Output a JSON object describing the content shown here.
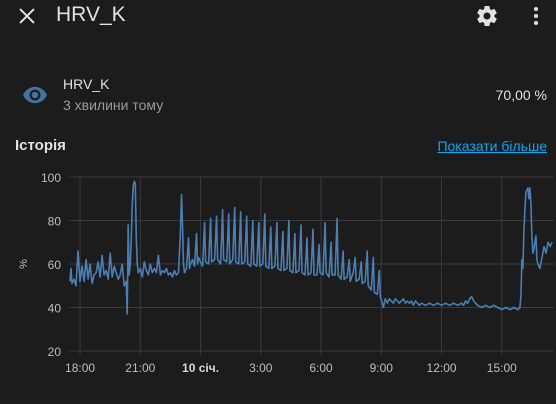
{
  "header": {
    "title": "HRV_K",
    "close_icon": "close-icon",
    "settings_icon": "gear-icon",
    "more_icon": "more-vertical-icon"
  },
  "entity": {
    "icon": "eye-icon",
    "name": "HRV_K",
    "last_changed": "3 хвилини тому",
    "state": "70,00 %"
  },
  "history": {
    "title": "Історія",
    "show_more": "Показати більше"
  },
  "colors": {
    "background": "#1c1c1c",
    "line": "#4a7fb5",
    "link": "#03a9f4",
    "icon": "#44739e"
  },
  "chart_data": {
    "type": "line",
    "ylabel": "%",
    "ylim": [
      20,
      100
    ],
    "yticks": [
      20,
      40,
      60,
      80,
      100
    ],
    "xticks": [
      {
        "label": "18:00",
        "hour": 0,
        "bold": false
      },
      {
        "label": "21:00",
        "hour": 3,
        "bold": false
      },
      {
        "label": "10 січ.",
        "hour": 6,
        "bold": true
      },
      {
        "label": "3:00",
        "hour": 9,
        "bold": false
      },
      {
        "label": "6:00",
        "hour": 12,
        "bold": false
      },
      {
        "label": "9:00",
        "hour": 15,
        "bold": false
      },
      {
        "label": "12:00",
        "hour": 18,
        "bold": false
      },
      {
        "label": "15:00",
        "hour": 21,
        "bold": false
      }
    ],
    "xlim_hours": [
      -0.55,
      23.55
    ],
    "grid": true,
    "series": [
      {
        "name": "",
        "points": [
          [
            -0.5,
            52
          ],
          [
            -0.45,
            58
          ],
          [
            -0.4,
            51
          ],
          [
            -0.3,
            53
          ],
          [
            -0.2,
            50
          ],
          [
            -0.1,
            66
          ],
          [
            0.0,
            52
          ],
          [
            0.1,
            59
          ],
          [
            0.2,
            52
          ],
          [
            0.3,
            62
          ],
          [
            0.4,
            53
          ],
          [
            0.5,
            60
          ],
          [
            0.6,
            51
          ],
          [
            0.7,
            55
          ],
          [
            0.8,
            56
          ],
          [
            0.9,
            61
          ],
          [
            1.0,
            54
          ],
          [
            1.1,
            64
          ],
          [
            1.2,
            55
          ],
          [
            1.3,
            57
          ],
          [
            1.4,
            53
          ],
          [
            1.5,
            65
          ],
          [
            1.6,
            54
          ],
          [
            1.7,
            59
          ],
          [
            1.8,
            56
          ],
          [
            1.9,
            53
          ],
          [
            2.0,
            55
          ],
          [
            2.1,
            60
          ],
          [
            2.2,
            50
          ],
          [
            2.3,
            52
          ],
          [
            2.35,
            37
          ],
          [
            2.4,
            78
          ],
          [
            2.45,
            55
          ],
          [
            2.5,
            60
          ],
          [
            2.55,
            72
          ],
          [
            2.6,
            88
          ],
          [
            2.65,
            96
          ],
          [
            2.7,
            98
          ],
          [
            2.75,
            97
          ],
          [
            2.8,
            72
          ],
          [
            2.85,
            60
          ],
          [
            2.9,
            56
          ],
          [
            3.0,
            58
          ],
          [
            3.1,
            54
          ],
          [
            3.2,
            61
          ],
          [
            3.3,
            57
          ],
          [
            3.4,
            55
          ],
          [
            3.5,
            60
          ],
          [
            3.6,
            56
          ],
          [
            3.7,
            58
          ],
          [
            3.8,
            56
          ],
          [
            3.9,
            64
          ],
          [
            4.0,
            55
          ],
          [
            4.1,
            57
          ],
          [
            4.2,
            56
          ],
          [
            4.3,
            58
          ],
          [
            4.4,
            55
          ],
          [
            4.5,
            56
          ],
          [
            4.6,
            54
          ],
          [
            4.7,
            57
          ],
          [
            4.8,
            55
          ],
          [
            4.9,
            56
          ],
          [
            5.0,
            75
          ],
          [
            5.05,
            92
          ],
          [
            5.1,
            78
          ],
          [
            5.15,
            60
          ],
          [
            5.2,
            56
          ],
          [
            5.3,
            58
          ],
          [
            5.4,
            72
          ],
          [
            5.45,
            58
          ],
          [
            5.5,
            60
          ],
          [
            5.6,
            62
          ],
          [
            5.7,
            59
          ],
          [
            5.8,
            74
          ],
          [
            5.85,
            60
          ],
          [
            5.9,
            63
          ],
          [
            6.0,
            61
          ],
          [
            6.1,
            59
          ],
          [
            6.2,
            79
          ],
          [
            6.25,
            61
          ],
          [
            6.4,
            60
          ],
          [
            6.5,
            81
          ],
          [
            6.55,
            61
          ],
          [
            6.7,
            62
          ],
          [
            6.8,
            82
          ],
          [
            6.85,
            62
          ],
          [
            7.0,
            60
          ],
          [
            7.1,
            85
          ],
          [
            7.15,
            62
          ],
          [
            7.3,
            61
          ],
          [
            7.4,
            83
          ],
          [
            7.45,
            60
          ],
          [
            7.6,
            62
          ],
          [
            7.7,
            86
          ],
          [
            7.75,
            61
          ],
          [
            7.9,
            60
          ],
          [
            8.0,
            84
          ],
          [
            8.05,
            60
          ],
          [
            8.2,
            61
          ],
          [
            8.3,
            82
          ],
          [
            8.35,
            60
          ],
          [
            8.5,
            59
          ],
          [
            8.6,
            80
          ],
          [
            8.65,
            60
          ],
          [
            8.8,
            59
          ],
          [
            8.9,
            79
          ],
          [
            8.95,
            59
          ],
          [
            9.1,
            60
          ],
          [
            9.2,
            83
          ],
          [
            9.25,
            59
          ],
          [
            9.4,
            58
          ],
          [
            9.5,
            77
          ],
          [
            9.55,
            58
          ],
          [
            9.7,
            59
          ],
          [
            9.8,
            79
          ],
          [
            9.85,
            58
          ],
          [
            10.0,
            57
          ],
          [
            10.1,
            75
          ],
          [
            10.15,
            57
          ],
          [
            10.3,
            58
          ],
          [
            10.4,
            80
          ],
          [
            10.45,
            57
          ],
          [
            10.6,
            56
          ],
          [
            10.7,
            74
          ],
          [
            10.75,
            56
          ],
          [
            10.9,
            57
          ],
          [
            11.0,
            78
          ],
          [
            11.05,
            56
          ],
          [
            11.2,
            55
          ],
          [
            11.3,
            72
          ],
          [
            11.35,
            55
          ],
          [
            11.5,
            56
          ],
          [
            11.6,
            76
          ],
          [
            11.65,
            55
          ],
          [
            11.8,
            55
          ],
          [
            11.9,
            69
          ],
          [
            11.95,
            56
          ],
          [
            12.1,
            55
          ],
          [
            12.2,
            79
          ],
          [
            12.25,
            56
          ],
          [
            12.4,
            54
          ],
          [
            12.5,
            70
          ],
          [
            12.55,
            55
          ],
          [
            12.7,
            55
          ],
          [
            12.8,
            81
          ],
          [
            12.85,
            55
          ],
          [
            13.0,
            53
          ],
          [
            13.1,
            66
          ],
          [
            13.15,
            53
          ],
          [
            13.3,
            54
          ],
          [
            13.4,
            62
          ],
          [
            13.45,
            52
          ],
          [
            13.6,
            56
          ],
          [
            13.7,
            63
          ],
          [
            13.75,
            52
          ],
          [
            13.9,
            53
          ],
          [
            14.0,
            61
          ],
          [
            14.05,
            51
          ],
          [
            14.2,
            52
          ],
          [
            14.3,
            66
          ],
          [
            14.35,
            50
          ],
          [
            14.5,
            48
          ],
          [
            14.6,
            63
          ],
          [
            14.65,
            47
          ],
          [
            14.8,
            46
          ],
          [
            14.9,
            57
          ],
          [
            14.95,
            45
          ],
          [
            15.05,
            42
          ],
          [
            15.1,
            40
          ],
          [
            15.2,
            44
          ],
          [
            15.3,
            42
          ],
          [
            15.4,
            44
          ],
          [
            15.5,
            43
          ],
          [
            15.6,
            42
          ],
          [
            15.7,
            44
          ],
          [
            15.8,
            43
          ],
          [
            15.9,
            42
          ],
          [
            16.0,
            43
          ],
          [
            16.1,
            44
          ],
          [
            16.2,
            42
          ],
          [
            16.3,
            43
          ],
          [
            16.4,
            42
          ],
          [
            16.5,
            43
          ],
          [
            16.6,
            41
          ],
          [
            16.7,
            43
          ],
          [
            16.8,
            42
          ],
          [
            16.9,
            41
          ],
          [
            17.0,
            42
          ],
          [
            17.2,
            41
          ],
          [
            17.4,
            42
          ],
          [
            17.6,
            41
          ],
          [
            17.8,
            42
          ],
          [
            18.0,
            41
          ],
          [
            18.2,
            42
          ],
          [
            18.4,
            41
          ],
          [
            18.6,
            42
          ],
          [
            18.8,
            41
          ],
          [
            19.0,
            42
          ],
          [
            19.1,
            41
          ],
          [
            19.2,
            43
          ],
          [
            19.3,
            42
          ],
          [
            19.4,
            44
          ],
          [
            19.5,
            45
          ],
          [
            19.6,
            43
          ],
          [
            19.7,
            42
          ],
          [
            19.8,
            41
          ],
          [
            20.0,
            40
          ],
          [
            20.2,
            41
          ],
          [
            20.4,
            40
          ],
          [
            20.6,
            41
          ],
          [
            20.8,
            40
          ],
          [
            21.0,
            39
          ],
          [
            21.2,
            40
          ],
          [
            21.4,
            39
          ],
          [
            21.6,
            40
          ],
          [
            21.8,
            39
          ],
          [
            21.9,
            40
          ],
          [
            21.95,
            45
          ],
          [
            22.0,
            62
          ],
          [
            22.05,
            58
          ],
          [
            22.1,
            75
          ],
          [
            22.15,
            85
          ],
          [
            22.2,
            93
          ],
          [
            22.3,
            95
          ],
          [
            22.35,
            90
          ],
          [
            22.4,
            95
          ],
          [
            22.45,
            88
          ],
          [
            22.5,
            73
          ],
          [
            22.55,
            65
          ],
          [
            22.6,
            67
          ],
          [
            22.7,
            73
          ],
          [
            22.75,
            62
          ],
          [
            22.8,
            60
          ],
          [
            22.9,
            58
          ],
          [
            23.0,
            63
          ],
          [
            23.1,
            68
          ],
          [
            23.2,
            65
          ],
          [
            23.3,
            70
          ],
          [
            23.4,
            68
          ],
          [
            23.5,
            70
          ]
        ]
      }
    ]
  }
}
